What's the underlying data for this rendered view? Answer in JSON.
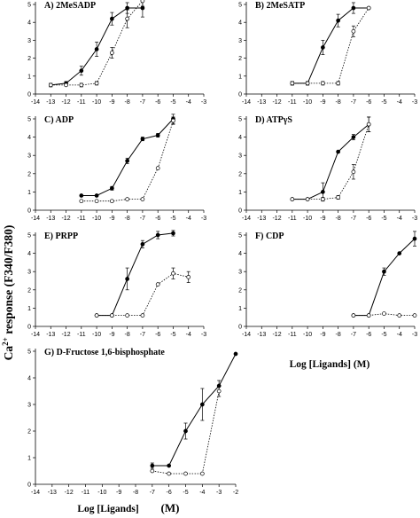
{
  "ylabel": "Ca2+ response (F340/F380)",
  "xlabel_right": "Log [Ligands]  (M)",
  "xlabel_bottom": "Log [Ligands]",
  "xlabel_bottom_unit": "(M)",
  "chart_data": [
    {
      "type": "line",
      "panel": "A)",
      "title": "2MeSADP",
      "xlim": [
        -14,
        -3
      ],
      "ylim": [
        0,
        5
      ],
      "series": [
        {
          "style": "filled",
          "x": [
            -13,
            -12,
            -11,
            -10,
            -9,
            -8,
            -7
          ],
          "y": [
            0.5,
            0.6,
            1.3,
            2.5,
            4.2,
            4.8,
            4.8
          ],
          "err": [
            0.1,
            0.1,
            0.25,
            0.4,
            0.35,
            0.3,
            0.5
          ]
        },
        {
          "style": "open",
          "x": [
            -13,
            -12,
            -11,
            -10,
            -9,
            -8,
            -7
          ],
          "y": [
            0.5,
            0.5,
            0.5,
            0.6,
            2.3,
            4.2,
            5.2
          ],
          "err": [
            0.05,
            0.05,
            0.1,
            0.1,
            0.3,
            0.5,
            0.3
          ]
        }
      ]
    },
    {
      "type": "line",
      "panel": "B)",
      "title": "2MeSATP",
      "xlim": [
        -14,
        -3
      ],
      "ylim": [
        0,
        5
      ],
      "series": [
        {
          "style": "filled",
          "x": [
            -11,
            -10,
            -9,
            -8,
            -7,
            -6
          ],
          "y": [
            0.6,
            0.6,
            2.6,
            4.1,
            4.8,
            4.8
          ],
          "err": [
            0.1,
            0.1,
            0.4,
            0.35,
            0.3,
            0
          ]
        },
        {
          "style": "open",
          "x": [
            -11,
            -10,
            -9,
            -8,
            -7,
            -6
          ],
          "y": [
            0.6,
            0.6,
            0.6,
            0.6,
            3.5,
            4.8
          ],
          "err": [
            0.1,
            0.1,
            0.1,
            0.1,
            0.3,
            0
          ]
        }
      ]
    },
    {
      "type": "line",
      "panel": "C)",
      "title": "ADP",
      "xlim": [
        -14,
        -3
      ],
      "ylim": [
        0,
        5
      ],
      "series": [
        {
          "style": "filled",
          "x": [
            -11,
            -10,
            -9,
            -8,
            -7,
            -6,
            -5
          ],
          "y": [
            0.8,
            0.8,
            1.2,
            2.7,
            3.9,
            4.1,
            5.0
          ],
          "err": [
            0,
            0,
            0.1,
            0.15,
            0.1,
            0.1,
            0.25
          ]
        },
        {
          "style": "open",
          "x": [
            -11,
            -10,
            -9,
            -8,
            -7,
            -6,
            -5
          ],
          "y": [
            0.5,
            0.5,
            0.5,
            0.6,
            0.6,
            2.3,
            4.9
          ],
          "err": [
            0,
            0,
            0,
            0,
            0,
            0,
            0.2
          ]
        }
      ]
    },
    {
      "type": "line",
      "panel": "D)",
      "title": "ATPγS",
      "xlim": [
        -14,
        -3
      ],
      "ylim": [
        0,
        5
      ],
      "series": [
        {
          "style": "filled",
          "x": [
            -11,
            -10,
            -9,
            -8,
            -7,
            -6
          ],
          "y": [
            0.6,
            0.6,
            1.0,
            3.2,
            4.0,
            4.7
          ],
          "err": [
            0,
            0,
            0.5,
            0,
            0.15,
            0.4
          ]
        },
        {
          "style": "open",
          "x": [
            -11,
            -10,
            -9,
            -8,
            -7,
            -6
          ],
          "y": [
            0.6,
            0.6,
            0.6,
            0.7,
            2.1,
            4.7
          ],
          "err": [
            0,
            0,
            0.1,
            0.1,
            0.4,
            0.4
          ]
        }
      ]
    },
    {
      "type": "line",
      "panel": "E)",
      "title": "PRPP",
      "xlim": [
        -14,
        -3
      ],
      "ylim": [
        0,
        5
      ],
      "series": [
        {
          "style": "filled",
          "x": [
            -10,
            -9,
            -8,
            -7,
            -6,
            -5
          ],
          "y": [
            0.6,
            0.6,
            2.6,
            4.5,
            5.0,
            5.1
          ],
          "err": [
            0,
            0,
            0.6,
            0.2,
            0.2,
            0.15
          ]
        },
        {
          "style": "open",
          "x": [
            -10,
            -9,
            -8,
            -7,
            -6,
            -5,
            -4
          ],
          "y": [
            0.6,
            0.6,
            0.6,
            0.6,
            2.3,
            2.9,
            2.7
          ],
          "err": [
            0,
            0,
            0,
            0,
            0,
            0.3,
            0.3
          ]
        }
      ]
    },
    {
      "type": "line",
      "panel": "F)",
      "title": "CDP",
      "xlim": [
        -14,
        -3
      ],
      "ylim": [
        0,
        5
      ],
      "series": [
        {
          "style": "filled",
          "x": [
            -7,
            -6,
            -5,
            -4,
            -3
          ],
          "y": [
            0.6,
            0.6,
            3.0,
            4.0,
            4.8
          ],
          "err": [
            0,
            0,
            0.2,
            0,
            0.4
          ]
        },
        {
          "style": "open",
          "x": [
            -7,
            -6,
            -5,
            -4,
            -3
          ],
          "y": [
            0.6,
            0.6,
            0.7,
            0.6,
            0.6
          ],
          "err": [
            0,
            0,
            0,
            0,
            0
          ]
        }
      ]
    },
    {
      "type": "line",
      "panel": "G)",
      "title": "D-Fructose 1,6-bisphosphate",
      "xlim": [
        -14,
        -2
      ],
      "ylim": [
        0,
        5
      ],
      "series": [
        {
          "style": "filled",
          "x": [
            -7,
            -6,
            -5,
            -4,
            -3,
            -2
          ],
          "y": [
            0.7,
            0.7,
            2.0,
            3.0,
            3.7,
            4.9
          ],
          "err": [
            0.1,
            0,
            0.3,
            0.6,
            0.2,
            0
          ]
        },
        {
          "style": "open",
          "x": [
            -7,
            -6,
            -5,
            -4,
            -3
          ],
          "y": [
            0.5,
            0.4,
            0.4,
            0.4,
            3.5
          ],
          "err": [
            0,
            0,
            0,
            0,
            0.2
          ]
        }
      ]
    }
  ]
}
